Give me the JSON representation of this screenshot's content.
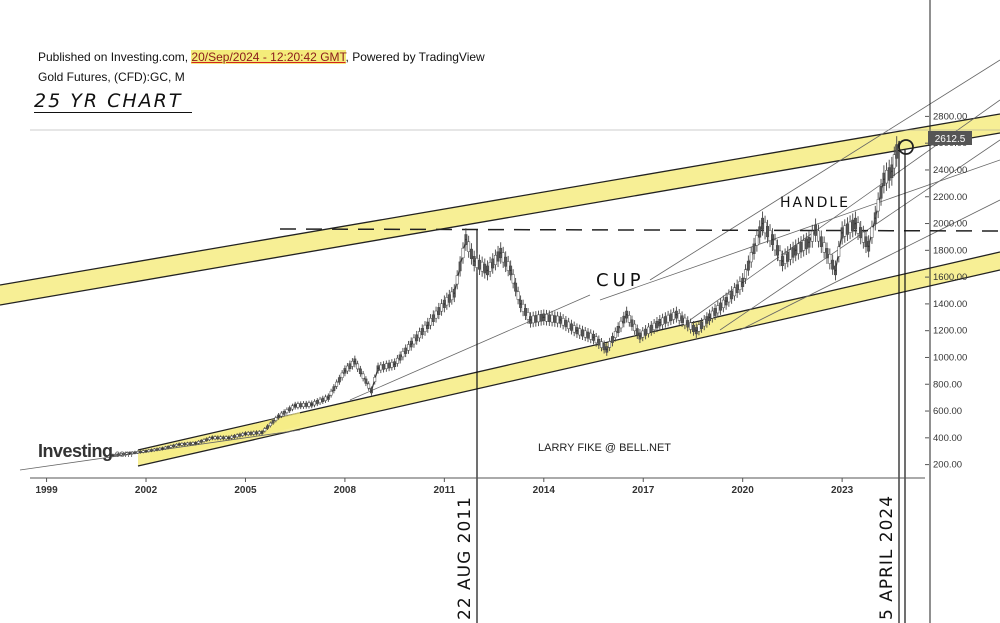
{
  "header": {
    "published_prefix": "Published on Investing.com, ",
    "published_date": "20/Sep/2024 - 12:20:42 GMT",
    "published_suffix": ", Powered by TradingView",
    "instrument": "Gold Futures, (CFD):GC, M",
    "handwritten_title": "25 YR  CHART"
  },
  "annotations": {
    "cup": "CUP",
    "handle": "HANDLE",
    "date_2011": "22 AUG 2011",
    "date_2024": "5 APRIL 2024",
    "credit": "LARRY FIKE @ BELL.NET",
    "last_price": "2612.5"
  },
  "logo": {
    "main": "Investing",
    "suffix": ".com"
  },
  "colors": {
    "channel_fill": "#f6ec83",
    "price": "#333333",
    "axis": "#555555",
    "underline": "#d32020"
  },
  "chart_data": {
    "type": "line",
    "title": "Gold Futures, (CFD):GC, M",
    "xlabel": "",
    "ylabel": "",
    "x_ticks": [
      "1999",
      "2002",
      "2005",
      "2008",
      "2011",
      "2014",
      "2017",
      "2020",
      "2023"
    ],
    "y_ticks": [
      "200.00",
      "400.00",
      "600.00",
      "800.00",
      "1000.00",
      "1200.00",
      "1400.00",
      "1600.00",
      "1800.00",
      "2000.00",
      "2200.00",
      "2400.00",
      "2600.00",
      "2800.00"
    ],
    "xlim": [
      1998.5,
      2025.5
    ],
    "ylim": [
      100,
      2900
    ],
    "series": [
      {
        "x": [
          2001.0,
          2001.5,
          2002.0,
          2002.5,
          2003.0,
          2003.5,
          2004.0,
          2004.5,
          2005.0,
          2005.5,
          2006.0,
          2006.5,
          2007.0,
          2007.5,
          2008.0,
          2008.3,
          2008.8,
          2009.0,
          2009.5,
          2010.0,
          2010.5,
          2011.0,
          2011.3,
          2011.65,
          2011.9,
          2012.3,
          2012.7,
          2013.0,
          2013.3,
          2013.6,
          2014.0,
          2014.5,
          2015.0,
          2015.5,
          2015.9,
          2016.5,
          2016.9,
          2017.5,
          2018.0,
          2018.6,
          2019.0,
          2019.5,
          2020.0,
          2020.6,
          2020.9,
          2021.2,
          2021.6,
          2022.0,
          2022.2,
          2022.8,
          2023.0,
          2023.4,
          2023.8,
          2024.0,
          2024.26,
          2024.5,
          2024.72
        ],
        "values": [
          270,
          285,
          300,
          320,
          350,
          360,
          400,
          400,
          430,
          440,
          560,
          640,
          650,
          700,
          900,
          970,
          750,
          920,
          950,
          1100,
          1240,
          1400,
          1480,
          1880,
          1720,
          1650,
          1780,
          1650,
          1400,
          1280,
          1300,
          1280,
          1200,
          1150,
          1060,
          1320,
          1160,
          1260,
          1320,
          1200,
          1300,
          1420,
          1560,
          2000,
          1880,
          1720,
          1800,
          1860,
          1950,
          1650,
          1930,
          2000,
          1830,
          2040,
          2330,
          2390,
          2612
        ]
      }
    ],
    "reference_lines": {
      "dashed_horizontal_y": 1930
    },
    "grid": false
  }
}
